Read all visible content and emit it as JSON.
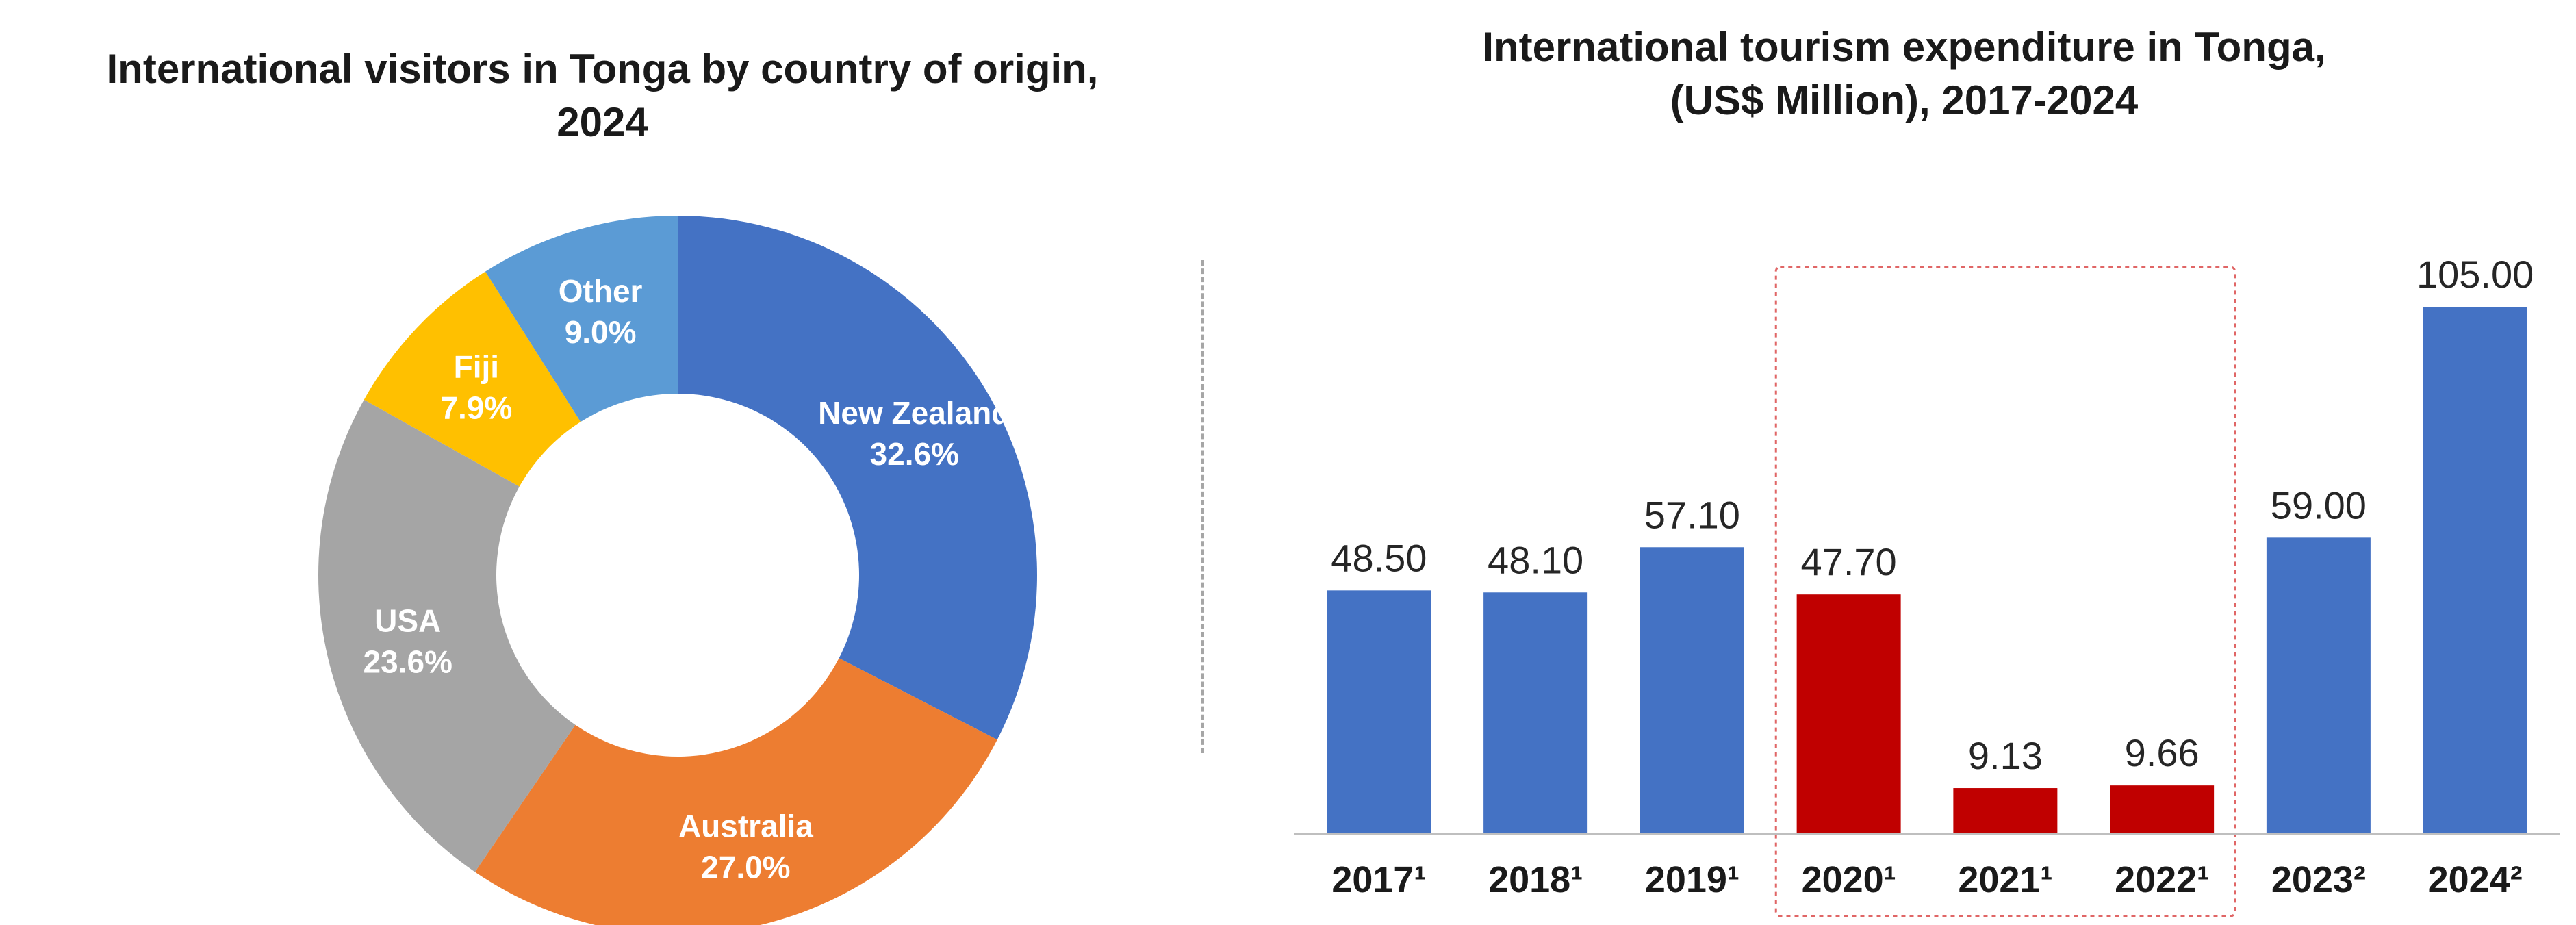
{
  "chart_data": [
    {
      "type": "pie",
      "donut": true,
      "title_lines": [
        "International visitors in Tonga by country of origin,",
        "2024"
      ],
      "slices": [
        {
          "label": "New Zealand",
          "value": 32.6,
          "display": "32.6%",
          "color": "#4472C4"
        },
        {
          "label": "Australia",
          "value": 27.0,
          "display": "27.0%",
          "color": "#ED7D31"
        },
        {
          "label": "USA",
          "value": 23.6,
          "display": "23.6%",
          "color": "#A5A5A5"
        },
        {
          "label": "Fiji",
          "value": 7.9,
          "display": "7.9%",
          "color": "#FFC000"
        },
        {
          "label": "Other",
          "value": 9.0,
          "display": "9.0%",
          "color": "#5B9BD5"
        }
      ]
    },
    {
      "type": "bar",
      "title_lines": [
        "International tourism expenditure in Tonga,",
        "(US$ Million), 2017-2024"
      ],
      "categories": [
        "2017¹",
        "2018¹",
        "2019¹",
        "2020¹",
        "2021¹",
        "2022¹",
        "2023²",
        "2024²"
      ],
      "values": [
        48.5,
        48.1,
        57.1,
        47.7,
        9.13,
        9.66,
        59.0,
        105.0
      ],
      "value_labels": [
        "48.50",
        "48.10",
        "57.10",
        "47.70",
        "9.13",
        "9.66",
        "59.00",
        "105.00"
      ],
      "bar_colors": [
        "#4472C4",
        "#4472C4",
        "#4472C4",
        "#C00000",
        "#C00000",
        "#C00000",
        "#4472C4",
        "#4472C4"
      ],
      "highlight_categories": [
        "2020¹",
        "2021¹",
        "2022¹"
      ],
      "highlight_color": "#E06666",
      "ylim": [
        0,
        105
      ],
      "grid": false
    }
  ]
}
